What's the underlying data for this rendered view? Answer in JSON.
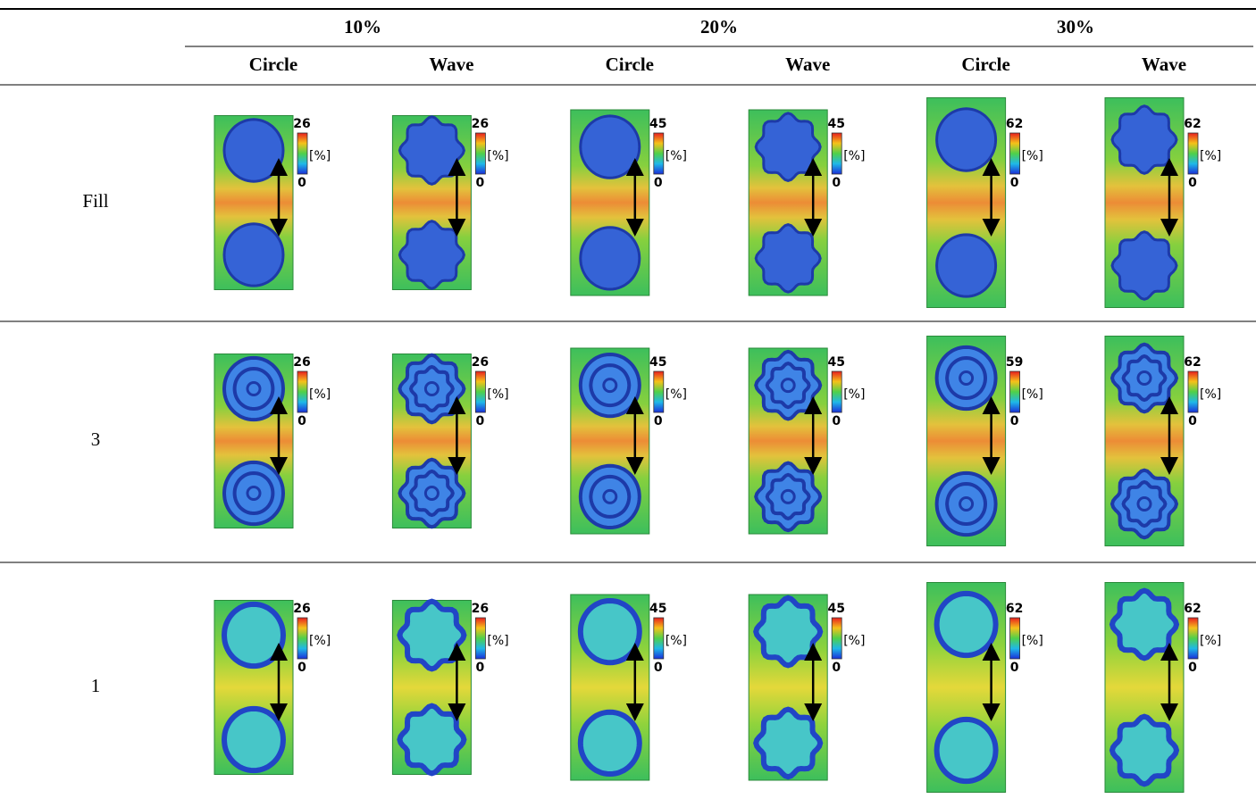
{
  "table": {
    "groups": [
      "10%",
      "20%",
      "30%"
    ],
    "columns": [
      "Circle",
      "Wave",
      "Circle",
      "Wave",
      "Circle",
      "Wave"
    ],
    "rows": [
      {
        "label": "Fill",
        "cells": [
          {
            "max": 26,
            "unit": "[%]",
            "min": 0
          },
          {
            "max": 26,
            "unit": "[%]",
            "min": 0
          },
          {
            "max": 45,
            "unit": "[%]",
            "min": 0
          },
          {
            "max": 45,
            "unit": "[%]",
            "min": 0
          },
          {
            "max": 62,
            "unit": "[%]",
            "min": 0
          },
          {
            "max": 62,
            "unit": "[%]",
            "min": 0
          }
        ]
      },
      {
        "label": "3",
        "cells": [
          {
            "max": 26,
            "unit": "[%]",
            "min": 0
          },
          {
            "max": 26,
            "unit": "[%]",
            "min": 0
          },
          {
            "max": 45,
            "unit": "[%]",
            "min": 0
          },
          {
            "max": 45,
            "unit": "[%]",
            "min": 0
          },
          {
            "max": 59,
            "unit": "[%]",
            "min": 0
          },
          {
            "max": 62,
            "unit": "[%]",
            "min": 0
          }
        ]
      },
      {
        "label": "1",
        "cells": [
          {
            "max": 26,
            "unit": "[%]",
            "min": 0
          },
          {
            "max": 26,
            "unit": "[%]",
            "min": 0
          },
          {
            "max": 45,
            "unit": "[%]",
            "min": 0
          },
          {
            "max": 45,
            "unit": "[%]",
            "min": 0
          },
          {
            "max": 62,
            "unit": "[%]",
            "min": 0
          },
          {
            "max": 62,
            "unit": "[%]",
            "min": 0
          }
        ]
      }
    ]
  }
}
